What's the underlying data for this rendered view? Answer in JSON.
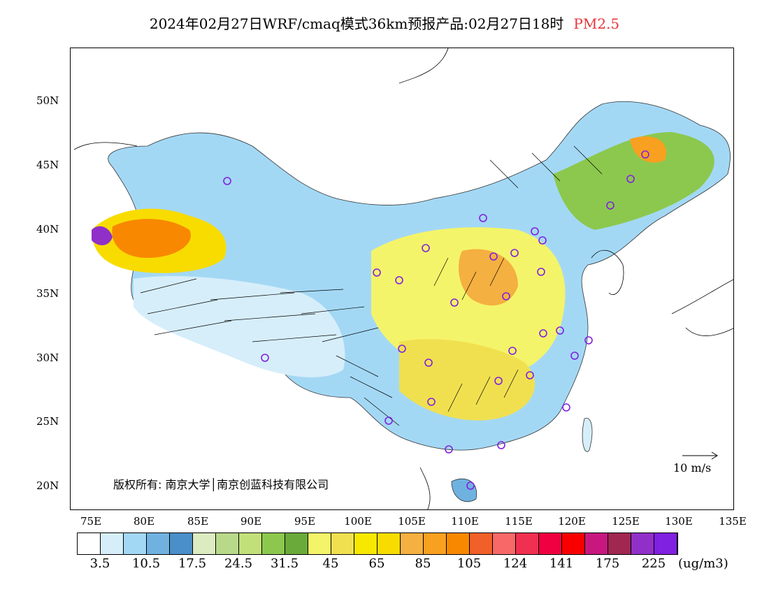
{
  "title": {
    "main": "2024年02月27日WRF/cmaq模式36km预报产品:02月27日18时",
    "pollutant": "PM2.5",
    "pollutant_color": "#e8353a"
  },
  "axes": {
    "lat_labels": [
      "50N",
      "45N",
      "40N",
      "35N",
      "30N",
      "25N",
      "20N"
    ],
    "lon_labels": [
      "75E",
      "80E",
      "85E",
      "90E",
      "95E",
      "100E",
      "105E",
      "110E",
      "115E",
      "120E",
      "125E",
      "130E",
      "135E"
    ]
  },
  "vector_reference": {
    "label": "10 m/s"
  },
  "copyright": "版权所有: 南京大学│南京创蓝科技有限公司",
  "colorbar": {
    "colors": [
      "#ffffff",
      "#d6eefa",
      "#a3d8f5",
      "#6fb2e0",
      "#4a8fc8",
      "#dcebc0",
      "#b8d98a",
      "#c2e07a",
      "#8cc84e",
      "#6aaa3a",
      "#f4f46a",
      "#f0e050",
      "#f8e800",
      "#f8dc00",
      "#f4b040",
      "#f8a020",
      "#f88800",
      "#f06028",
      "#f86868",
      "#f03050",
      "#f00040",
      "#f80000",
      "#c81880",
      "#a02850",
      "#9030c8",
      "#8020e0"
    ],
    "labels": [
      "3.5",
      "10.5",
      "17.5",
      "24.5",
      "31.5",
      "45",
      "65",
      "85",
      "105",
      "124",
      "141",
      "175",
      "225"
    ],
    "unit": "(ug/m3)"
  }
}
